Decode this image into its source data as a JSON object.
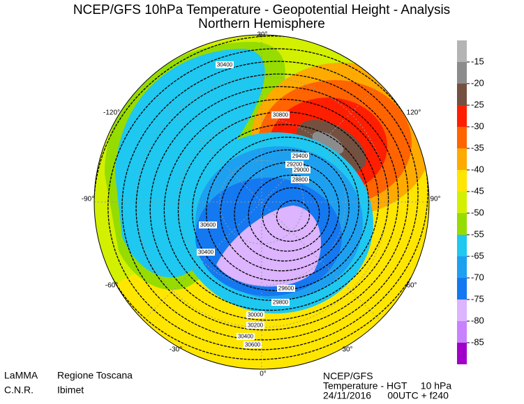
{
  "header": {
    "title": "NCEP/GFS 10hPa Temperature - Geopotential Height - Analysis",
    "subtitle": "Northern Hemisphere"
  },
  "legend": {
    "labels": [
      -15,
      -20,
      -25,
      -30,
      -35,
      -40,
      -45,
      -50,
      -55,
      -65,
      -70,
      -75,
      -80,
      -85
    ],
    "colors": [
      "#b4b4b4",
      "#8c8c8c",
      "#735040",
      "#ff1e00",
      "#ff6400",
      "#ffaa00",
      "#ffe600",
      "#d2f000",
      "#96dc00",
      "#1ec8f0",
      "#1ea0f0",
      "#1478f0",
      "#dcb4ff",
      "#c882ff",
      "#a000c8"
    ]
  },
  "longitude_labels": [
    "30°",
    "120°",
    "90°",
    "60°",
    "30°",
    "0°",
    "-30°",
    "-60°",
    "-90°",
    "-120°"
  ],
  "contour_labels": [
    30400,
    30800,
    29400,
    29200,
    29000,
    28800,
    30600,
    30400,
    29600,
    29800,
    30000,
    30200,
    30400,
    30600
  ],
  "footer": {
    "left": [
      [
        "LaMMA",
        "Regione Toscana"
      ],
      [
        "C.N.R.",
        "Ibimet"
      ]
    ],
    "right": [
      "NCEP/GFS",
      "Temperature - HGT     10 hPa",
      "24/11/2016      00UTC + f240"
    ]
  }
}
